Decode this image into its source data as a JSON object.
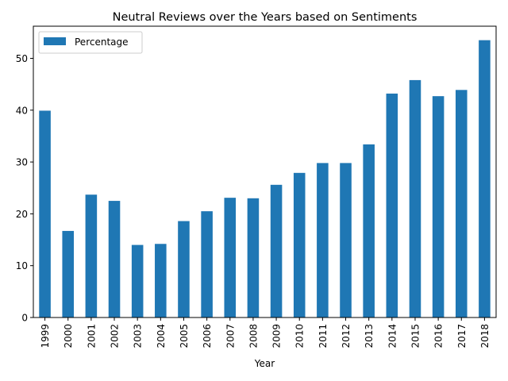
{
  "chart_data": {
    "type": "bar",
    "title": "Neutral Reviews over the Years based on Sentiments",
    "xlabel": "Year",
    "ylabel": "",
    "categories": [
      "1999",
      "2000",
      "2001",
      "2002",
      "2003",
      "2004",
      "2005",
      "2006",
      "2007",
      "2008",
      "2009",
      "2010",
      "2011",
      "2012",
      "2013",
      "2014",
      "2015",
      "2016",
      "2017",
      "2018"
    ],
    "series": [
      {
        "name": "Percentage",
        "color": "#1f77b4",
        "values": [
          39.9,
          16.7,
          23.7,
          22.5,
          14.0,
          14.2,
          18.6,
          20.5,
          23.1,
          23.0,
          25.6,
          27.9,
          29.8,
          29.8,
          33.4,
          43.2,
          45.8,
          42.7,
          43.9,
          53.5
        ]
      }
    ],
    "ylim": [
      0,
      56.2
    ],
    "yticks": [
      0,
      10,
      20,
      30,
      40,
      50
    ],
    "legend": "top-left",
    "grid": false
  }
}
